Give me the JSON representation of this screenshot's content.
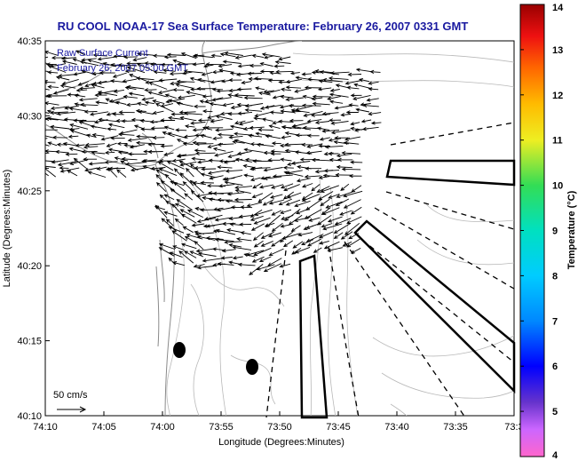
{
  "chart_data": {
    "type": "vector-field",
    "title": "RU COOL  NOAA-17  Sea Surface Temperature:  February 26, 2007 0331 GMT",
    "legend": [
      "Raw Surface Current",
      "February 26, 2007 05:00 GMT"
    ],
    "xlabel": "Longitude (Degrees:Minutes)",
    "ylabel": "Latitude (Degrees:Minutes)",
    "x_ticks": [
      "74:10",
      "74:05",
      "74:00",
      "73:55",
      "73:50",
      "73:45",
      "73:40",
      "73:35",
      "73:3"
    ],
    "y_ticks": [
      "40:10",
      "40:15",
      "40:20",
      "40:25",
      "40:30",
      "40:35"
    ],
    "xlim": [
      -74.1667,
      -73.5
    ],
    "ylim": [
      40.1667,
      40.5833
    ],
    "scale_arrow_label": "50 cm/s",
    "colorbar": {
      "label": "Temperature (°C)",
      "ticks": [
        "4",
        "5",
        "6",
        "7",
        "8",
        "9",
        "10",
        "11",
        "12",
        "13",
        "14"
      ],
      "range": [
        4,
        14
      ]
    },
    "grid": false
  },
  "colors": {
    "title": "#1a1aa0",
    "arrows": "#000000",
    "coast": "#9a9a9a",
    "bathymetry": "#b0b0b0"
  }
}
